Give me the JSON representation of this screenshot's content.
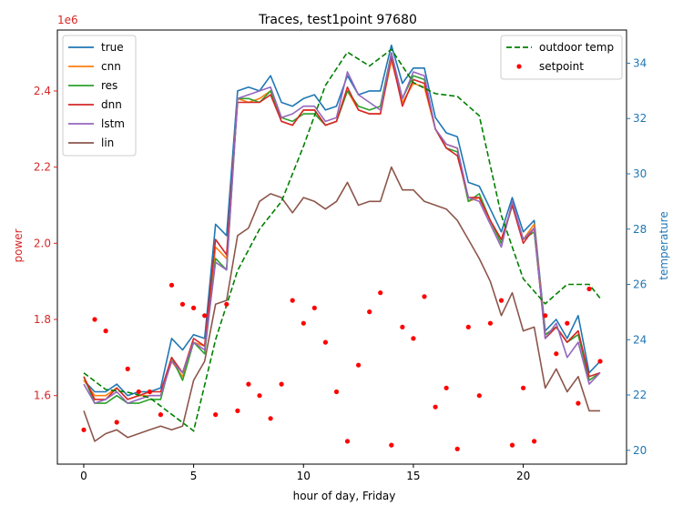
{
  "chart_data": {
    "type": "line",
    "title": "Traces, test1point 97680",
    "xlabel": "hour of day, Friday",
    "ylabel_left": "power",
    "ylabel_right": "temperature",
    "left_axis_offset_label": "1e6",
    "xlim": [
      -1.2,
      24.7
    ],
    "ylim_left": [
      1420000.0,
      2560000.0
    ],
    "ylim_right": [
      19.5,
      35.2
    ],
    "xticks": [
      0,
      5,
      10,
      15,
      20
    ],
    "xtick_labels": [
      "0",
      "5",
      "10",
      "15",
      "20"
    ],
    "yticks_left": [
      1600000.0,
      1800000.0,
      2000000.0,
      2200000.0,
      2400000.0
    ],
    "ytick_labels_left": [
      "1.6",
      "1.8",
      "2.0",
      "2.2",
      "2.4"
    ],
    "yticks_right": [
      20,
      22,
      24,
      26,
      28,
      30,
      32,
      34
    ],
    "ytick_labels_right": [
      "20",
      "22",
      "24",
      "26",
      "28",
      "30",
      "32",
      "34"
    ],
    "colors": {
      "left_axis": "#d62728",
      "right_axis": "#1f77b4",
      "outdoor_temp": "#008000",
      "setpoint": "#ff0000"
    },
    "legend_left_position": "upper-left",
    "legend_right_position": "upper-right",
    "x": [
      0,
      0.5,
      1,
      1.5,
      2,
      2.5,
      3,
      3.5,
      4,
      4.5,
      5,
      5.5,
      6,
      6.5,
      7,
      7.5,
      8,
      8.5,
      9,
      9.5,
      10,
      10.5,
      11,
      11.5,
      12,
      12.5,
      13,
      13.5,
      14,
      14.5,
      15,
      15.5,
      16,
      16.5,
      17,
      17.5,
      18,
      18.5,
      19,
      19.5,
      20,
      20.5,
      21,
      21.5,
      22,
      22.5,
      23,
      23.5
    ],
    "series": [
      {
        "name": "true",
        "color": "#1f77b4",
        "values": [
          1640000.0,
          1610000.0,
          1610000.0,
          1630000.0,
          1600000.0,
          1610000.0,
          1610000.0,
          1620000.0,
          1750000.0,
          1720000.0,
          1760000.0,
          1750000.0,
          2050000.0,
          2020000.0,
          2400000.0,
          2410000.0,
          2400000.0,
          2440000.0,
          2370000.0,
          2360000.0,
          2380000.0,
          2390000.0,
          2350000.0,
          2360000.0,
          2440000.0,
          2390000.0,
          2400000.0,
          2400000.0,
          2520000.0,
          2420000.0,
          2460000.0,
          2460000.0,
          2330000.0,
          2290000.0,
          2280000.0,
          2160000.0,
          2150000.0,
          2090000.0,
          2030000.0,
          2120000.0,
          2030000.0,
          2060000.0,
          1770000.0,
          1800000.0,
          1750000.0,
          1810000.0,
          1660000.0,
          1690000.0
        ]
      },
      {
        "name": "cnn",
        "color": "#ff7f0e",
        "values": [
          1640000.0,
          1600000.0,
          1600000.0,
          1620000.0,
          1590000.0,
          1600000.0,
          1600000.0,
          1600000.0,
          1690000.0,
          1650000.0,
          1740000.0,
          1730000.0,
          1990000.0,
          1960000.0,
          2380000.0,
          2370000.0,
          2380000.0,
          2400000.0,
          2320000.0,
          2310000.0,
          2350000.0,
          2350000.0,
          2310000.0,
          2320000.0,
          2400000.0,
          2350000.0,
          2340000.0,
          2340000.0,
          2480000.0,
          2370000.0,
          2420000.0,
          2410000.0,
          2300000.0,
          2260000.0,
          2250000.0,
          2110000.0,
          2120000.0,
          2060000.0,
          2000000.0,
          2100000.0,
          2010000.0,
          2050000.0,
          1760000.0,
          1780000.0,
          1740000.0,
          1770000.0,
          1640000.0,
          1660000.0
        ]
      },
      {
        "name": "res",
        "color": "#2ca02c",
        "values": [
          1650000.0,
          1580000.0,
          1580000.0,
          1600000.0,
          1580000.0,
          1580000.0,
          1590000.0,
          1590000.0,
          1700000.0,
          1640000.0,
          1740000.0,
          1710000.0,
          1960000.0,
          1930000.0,
          2380000.0,
          2380000.0,
          2370000.0,
          2400000.0,
          2330000.0,
          2320000.0,
          2340000.0,
          2340000.0,
          2310000.0,
          2320000.0,
          2400000.0,
          2360000.0,
          2350000.0,
          2360000.0,
          2500000.0,
          2380000.0,
          2440000.0,
          2430000.0,
          2300000.0,
          2250000.0,
          2240000.0,
          2110000.0,
          2130000.0,
          2060000.0,
          2000000.0,
          2100000.0,
          2010000.0,
          2030000.0,
          1760000.0,
          1780000.0,
          1740000.0,
          1760000.0,
          1640000.0,
          1660000.0
        ]
      },
      {
        "name": "dnn",
        "color": "#d62728",
        "values": [
          1650000.0,
          1590000.0,
          1590000.0,
          1620000.0,
          1590000.0,
          1600000.0,
          1610000.0,
          1610000.0,
          1700000.0,
          1660000.0,
          1750000.0,
          1730000.0,
          2010000.0,
          1970000.0,
          2370000.0,
          2370000.0,
          2370000.0,
          2390000.0,
          2320000.0,
          2310000.0,
          2350000.0,
          2350000.0,
          2310000.0,
          2320000.0,
          2410000.0,
          2350000.0,
          2340000.0,
          2340000.0,
          2490000.0,
          2360000.0,
          2430000.0,
          2420000.0,
          2300000.0,
          2250000.0,
          2230000.0,
          2120000.0,
          2120000.0,
          2060000.0,
          2010000.0,
          2100000.0,
          2000000.0,
          2040000.0,
          1750000.0,
          1780000.0,
          1740000.0,
          1770000.0,
          1650000.0,
          1660000.0
        ]
      },
      {
        "name": "lstm",
        "color": "#9467bd",
        "values": [
          1630000.0,
          1580000.0,
          1590000.0,
          1610000.0,
          1580000.0,
          1590000.0,
          1600000.0,
          1600000.0,
          1690000.0,
          1660000.0,
          1740000.0,
          1720000.0,
          1950000.0,
          1930000.0,
          2380000.0,
          2390000.0,
          2400000.0,
          2410000.0,
          2330000.0,
          2340000.0,
          2360000.0,
          2360000.0,
          2320000.0,
          2330000.0,
          2450000.0,
          2390000.0,
          2370000.0,
          2350000.0,
          2500000.0,
          2380000.0,
          2450000.0,
          2440000.0,
          2300000.0,
          2260000.0,
          2250000.0,
          2120000.0,
          2110000.0,
          2050000.0,
          1990000.0,
          2110000.0,
          2010000.0,
          2040000.0,
          1750000.0,
          1790000.0,
          1700000.0,
          1740000.0,
          1630000.0,
          1660000.0
        ]
      },
      {
        "name": "lin",
        "color": "#8c564b",
        "values": [
          1560000.0,
          1480000.0,
          1500000.0,
          1510000.0,
          1490000.0,
          1500000.0,
          1510000.0,
          1520000.0,
          1510000.0,
          1520000.0,
          1640000.0,
          1690000.0,
          1840000.0,
          1850000.0,
          2020000.0,
          2040000.0,
          2110000.0,
          2130000.0,
          2120000.0,
          2080000.0,
          2120000.0,
          2110000.0,
          2090000.0,
          2110000.0,
          2160000.0,
          2100000.0,
          2110000.0,
          2110000.0,
          2200000.0,
          2140000.0,
          2140000.0,
          2110000.0,
          2100000.0,
          2090000.0,
          2060000.0,
          2010000.0,
          1960000.0,
          1900000.0,
          1810000.0,
          1870000.0,
          1770000.0,
          1780000.0,
          1620000.0,
          1670000.0,
          1610000.0,
          1650000.0,
          1560000.0,
          1560000.0
        ]
      }
    ],
    "outdoor_temp": {
      "name": "outdoor temp",
      "axis": "right",
      "x": [
        0,
        1,
        2,
        3,
        4,
        5,
        6,
        7,
        8,
        9,
        10,
        11,
        12,
        13,
        14,
        15,
        16,
        17,
        18,
        19,
        20,
        21,
        22,
        23,
        23.5
      ],
      "values": [
        22.8,
        22.2,
        22.1,
        21.9,
        21.3,
        20.7,
        24.0,
        26.5,
        28.0,
        29.0,
        31.0,
        33.2,
        34.4,
        33.9,
        34.5,
        33.3,
        32.9,
        32.8,
        32.1,
        28.5,
        26.2,
        25.3,
        26.0,
        26.0,
        25.5
      ]
    },
    "setpoint": {
      "name": "setpoint",
      "axis": "left",
      "x": [
        0,
        0.5,
        1,
        1.5,
        2,
        2.5,
        3,
        3.5,
        4,
        4.5,
        5,
        5.5,
        6,
        6.5,
        7,
        7.5,
        8,
        8.5,
        9,
        9.5,
        10,
        10.5,
        11,
        11.5,
        12,
        12.5,
        13,
        13.5,
        14,
        14.5,
        15,
        15.5,
        16,
        16.5,
        17,
        17.5,
        18,
        18.5,
        19,
        19.5,
        20,
        20.5,
        21,
        21.5,
        22,
        22.5,
        23,
        23.5
      ],
      "values": [
        1510000.0,
        1800000.0,
        1770000.0,
        1530000.0,
        1670000.0,
        1610000.0,
        1610000.0,
        1550000.0,
        1890000.0,
        1840000.0,
        1830000.0,
        1810000.0,
        1550000.0,
        1840000.0,
        1560000.0,
        1630000.0,
        1600000.0,
        1540000.0,
        1630000.0,
        1850000.0,
        1790000.0,
        1830000.0,
        1740000.0,
        1610000.0,
        1480000.0,
        1680000.0,
        1820000.0,
        1870000.0,
        1470000.0,
        1780000.0,
        1750000.0,
        1860000.0,
        1570000.0,
        1620000.0,
        1460000.0,
        1780000.0,
        1600000.0,
        1790000.0,
        1850000.0,
        1470000.0,
        1620000.0,
        1480000.0,
        1810000.0,
        1710000.0,
        1790000.0,
        1580000.0,
        1880000.0,
        1690000.0
      ]
    }
  }
}
